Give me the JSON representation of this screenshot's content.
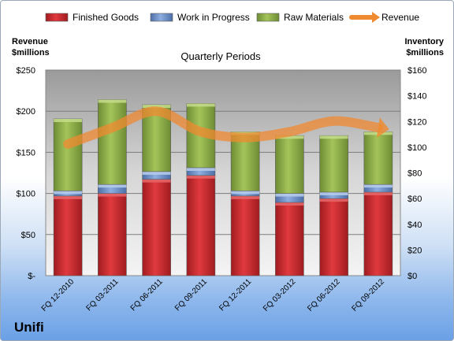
{
  "chart_data": {
    "type": "bar",
    "stacked": true,
    "title": "Quarterly Periods",
    "categories": [
      "FQ 12-2010",
      "FQ 03-2011",
      "FQ 06-2011",
      "FQ 09-2011",
      "FQ 12-2011",
      "FQ 03-2012",
      "FQ 06-2012",
      "FQ 09-2012"
    ],
    "series": [
      {
        "name": "Finished Goods",
        "color": "#c0272d",
        "axis": "right",
        "values": [
          62,
          64,
          75,
          78,
          62,
          57,
          60,
          65
        ]
      },
      {
        "name": "Work in Progress",
        "color": "#6a8cc4",
        "axis": "right",
        "values": [
          4,
          7,
          6,
          6,
          4,
          7,
          5,
          6
        ]
      },
      {
        "name": "Raw Materials",
        "color": "#8cac48",
        "axis": "right",
        "values": [
          56,
          66,
          52,
          50,
          46,
          45,
          44,
          41
        ]
      },
      {
        "name": "Revenue",
        "type": "line",
        "color": "#f08a30",
        "axis": "left",
        "values": [
          160,
          180,
          200,
          175,
          168,
          175,
          188,
          180
        ]
      }
    ],
    "left_axis": {
      "label_line1": "Revenue",
      "label_line2": "$millions",
      "range": [
        0,
        250
      ],
      "ticks": [
        "$-",
        "$50",
        "$100",
        "$150",
        "$200",
        "$250"
      ]
    },
    "right_axis": {
      "label_line1": "Inventory",
      "label_line2": "$millions",
      "range": [
        0,
        160
      ],
      "ticks": [
        "$0",
        "$20",
        "$40",
        "$60",
        "$80",
        "$100",
        "$120",
        "$140",
        "$160"
      ]
    },
    "legend_position": "top",
    "grid": true
  },
  "brand": "Unifi"
}
